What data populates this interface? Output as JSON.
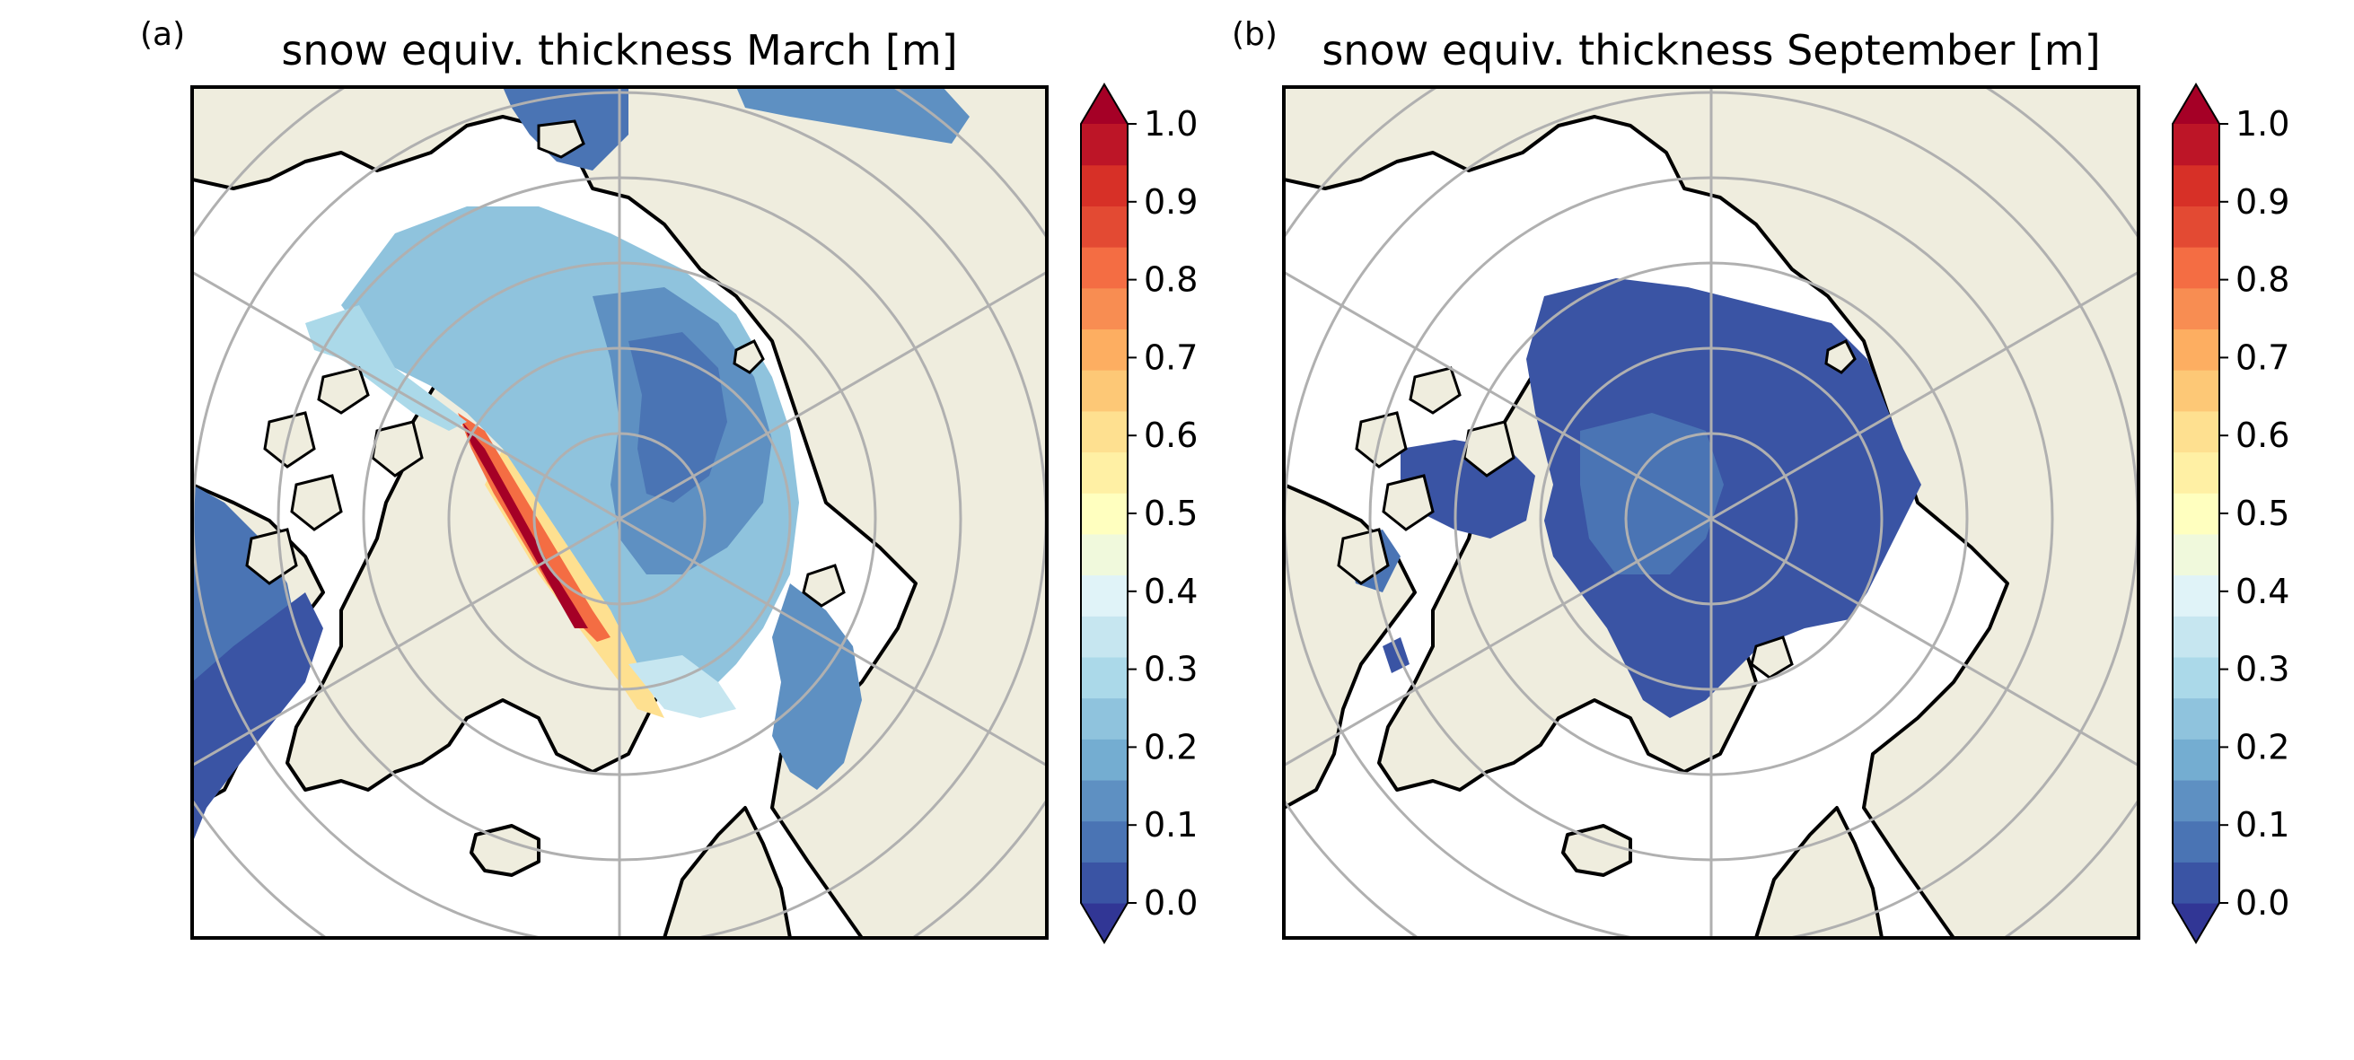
{
  "panels": [
    {
      "letter": "(a)",
      "title": "snow equiv. thickness March [m]",
      "month": "March",
      "ice_shading": "high",
      "description_values_m": {
        "central_arctic": 0.25,
        "beaufort_sea": 0.15,
        "north_of_greenland_max": 1.0,
        "east_greenland": 0.5,
        "marginal_seas": 0.1
      }
    },
    {
      "letter": "(b)",
      "title": "snow equiv. thickness September [m]",
      "month": "September",
      "ice_shading": "low",
      "description_values_m": {
        "central_arctic": 0.05,
        "canadian_archipelago": 0.03
      }
    }
  ],
  "colorbar": {
    "ticks": [
      "0.0",
      "0.1",
      "0.2",
      "0.3",
      "0.4",
      "0.5",
      "0.6",
      "0.7",
      "0.8",
      "0.9",
      "1.0"
    ],
    "range": [
      0.0,
      1.0
    ],
    "levels": 20,
    "extend": "both",
    "colors": [
      "#313695",
      "#3a54a4",
      "#4a74b4",
      "#5e90c2",
      "#74add1",
      "#8fc3dd",
      "#abd9e9",
      "#c6e6f0",
      "#e0f3f8",
      "#f0f9dc",
      "#ffffbf",
      "#fff0a4",
      "#fee090",
      "#fdc876",
      "#fdae61",
      "#f88d52",
      "#f46d43",
      "#e34a33",
      "#d73027",
      "#bd1527",
      "#a50026"
    ]
  },
  "map_colors": {
    "land": "#efedde",
    "ocean": "#ffffff",
    "grid": "#b0b0b0",
    "coast": "#000000"
  }
}
